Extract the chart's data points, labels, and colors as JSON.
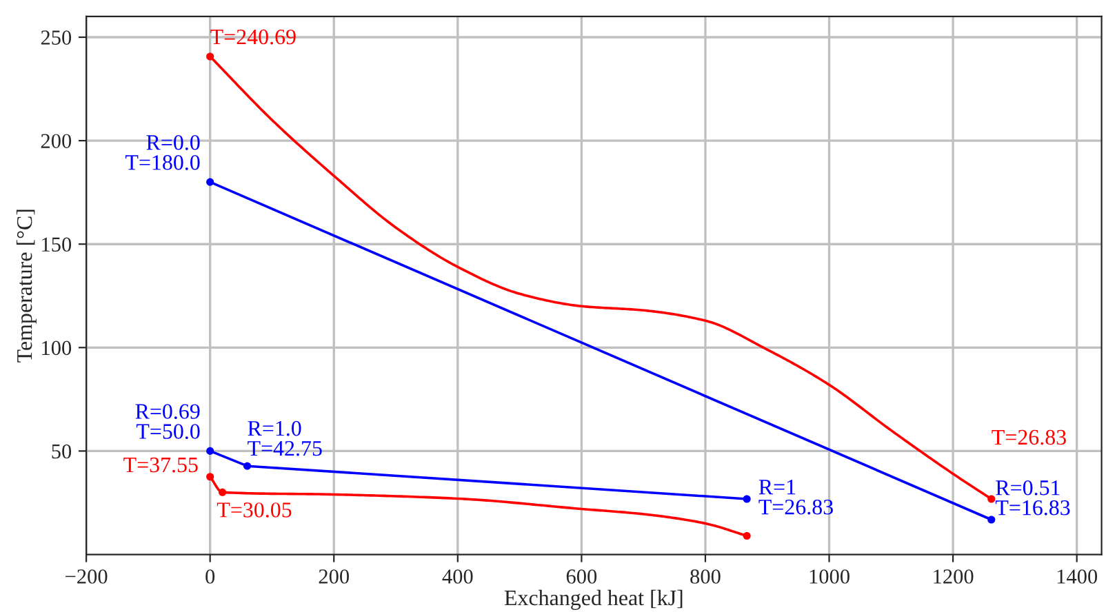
{
  "chart_data": {
    "type": "line",
    "xlabel": "Exchanged heat [kJ]",
    "ylabel": "Temperature [°C]",
    "xlim": [
      -200,
      1440
    ],
    "xticks": [
      {
        "value": -200,
        "label": "−200"
      },
      0,
      200,
      400,
      600,
      800,
      1000,
      1200,
      1400
    ],
    "ylim": [
      0,
      260
    ],
    "yticks": [
      50,
      100,
      150,
      200,
      250
    ],
    "grid": true,
    "marker": "none",
    "series": [
      {
        "color": "#ff0000",
        "x": [
          0,
          100,
          200,
          300,
          400,
          500,
          600,
          700,
          800,
          900,
          1000,
          1100,
          1200,
          1262
        ],
        "values": [
          240.69,
          210,
          183,
          158,
          139,
          126,
          120,
          118,
          113,
          99,
          82,
          60,
          39,
          26.83
        ]
      },
      {
        "color": "#0000ff",
        "x": [
          0,
          1262
        ],
        "values": [
          180.0,
          16.83
        ]
      },
      {
        "color": "#0000ff",
        "x": [
          0,
          60,
          867
        ],
        "values": [
          50.0,
          42.75,
          26.83
        ]
      },
      {
        "color": "#ff0000",
        "x": [
          0,
          20,
          200,
          400,
          600,
          700,
          800,
          867
        ],
        "values": [
          37.55,
          30.05,
          29,
          27,
          22,
          19.5,
          15,
          9
        ]
      },
      {
        "type": "scatter",
        "marker": "circle",
        "color": "#ff0000",
        "x": [
          0,
          1262,
          0,
          20,
          867
        ],
        "values": [
          240.69,
          26.83,
          37.55,
          30.05,
          9
        ],
        "value_labels": [
          "T=240.69",
          "T=26.83",
          "T=37.55",
          "T=30.05",
          null
        ]
      },
      {
        "type": "scatter",
        "marker": "circle",
        "color": "#0000ff",
        "x": [
          0,
          1262,
          0,
          60,
          867
        ],
        "values": [
          180.0,
          16.83,
          50.0,
          42.75,
          26.83
        ],
        "value_labels": [
          "R=0.0\nT=180.0",
          "R=0.51\nT=16.83",
          "R=0.69\nT=50.0",
          "R=1.0\nT=42.75",
          "R=1\nT=26.83"
        ]
      }
    ]
  }
}
